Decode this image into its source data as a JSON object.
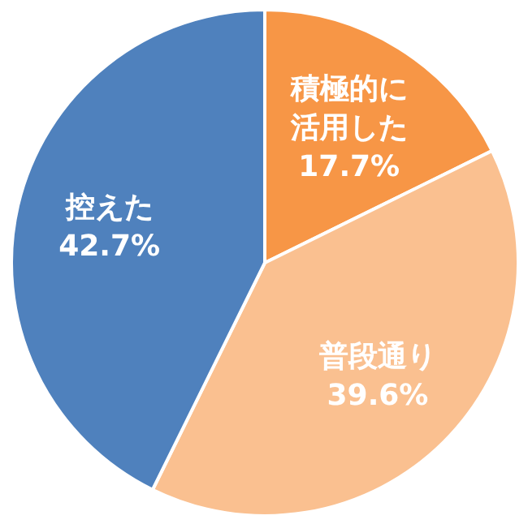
{
  "chart_data": {
    "type": "pie",
    "categories": [
      "積極的に活用した",
      "普段通り",
      "控えた"
    ],
    "values": [
      17.7,
      39.6,
      42.7
    ],
    "colors": [
      "#f79646",
      "#fac090",
      "#4f81bd"
    ],
    "value_labels": [
      "17.7%",
      "39.6%",
      "42.7%"
    ]
  }
}
